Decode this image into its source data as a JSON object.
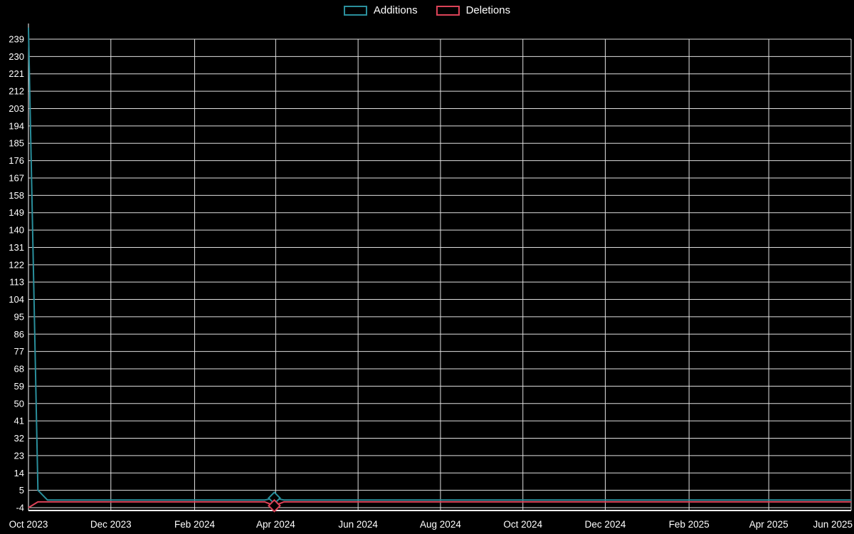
{
  "page": {
    "background_color": "#000000",
    "text_color": "#ffffff"
  },
  "chart_data": {
    "type": "line",
    "title": "",
    "legend_position": "top-center",
    "grid": true,
    "grid_color": "#e0e0e0",
    "axis_color": "#ffffff",
    "text_color": "#ffffff",
    "background_color": "#000000",
    "x_domain": [
      "2023-10-01",
      "2025-06-01"
    ],
    "y_range": [
      -4,
      239
    ],
    "y_ticks": [
      -4,
      5,
      14,
      23,
      32,
      41,
      50,
      59,
      68,
      77,
      86,
      95,
      104,
      113,
      122,
      131,
      140,
      149,
      158,
      167,
      176,
      185,
      194,
      203,
      212,
      221,
      230,
      239
    ],
    "x_ticks": [
      {
        "date": "2023-10-01",
        "label": "Oct 2023"
      },
      {
        "date": "2023-12-01",
        "label": "Dec 2023"
      },
      {
        "date": "2024-02-01",
        "label": "Feb 2024"
      },
      {
        "date": "2024-04-01",
        "label": "Apr 2024"
      },
      {
        "date": "2024-06-01",
        "label": "Jun 2024"
      },
      {
        "date": "2024-08-01",
        "label": "Aug 2024"
      },
      {
        "date": "2024-10-01",
        "label": "Oct 2024"
      },
      {
        "date": "2024-12-01",
        "label": "Dec 2024"
      },
      {
        "date": "2025-02-01",
        "label": "Feb 2025"
      },
      {
        "date": "2025-04-01",
        "label": "Apr 2025"
      },
      {
        "date": "2025-06-01",
        "label": "Jun 2025"
      }
    ],
    "series": [
      {
        "name": "Additions",
        "color": "#2a8f9c",
        "points": [
          [
            "2023-10-01",
            245
          ],
          [
            "2023-10-08",
            5
          ],
          [
            "2023-10-15",
            0
          ],
          [
            "2024-03-24",
            0
          ],
          [
            "2024-03-31",
            1
          ],
          [
            "2024-04-07",
            0
          ],
          [
            "2025-06-01",
            0
          ]
        ]
      },
      {
        "name": "Deletions",
        "color": "#dc4358",
        "points": [
          [
            "2023-10-01",
            -4
          ],
          [
            "2023-10-08",
            -1
          ],
          [
            "2023-10-15",
            -1
          ],
          [
            "2024-03-24",
            -1
          ],
          [
            "2024-03-31",
            -3
          ],
          [
            "2024-04-07",
            -1
          ],
          [
            "2025-06-01",
            -1
          ]
        ]
      }
    ],
    "markers": [
      {
        "series": "Additions",
        "x": "2024-03-31",
        "y": 1
      },
      {
        "series": "Deletions",
        "x": "2024-03-31",
        "y": -3
      }
    ]
  }
}
